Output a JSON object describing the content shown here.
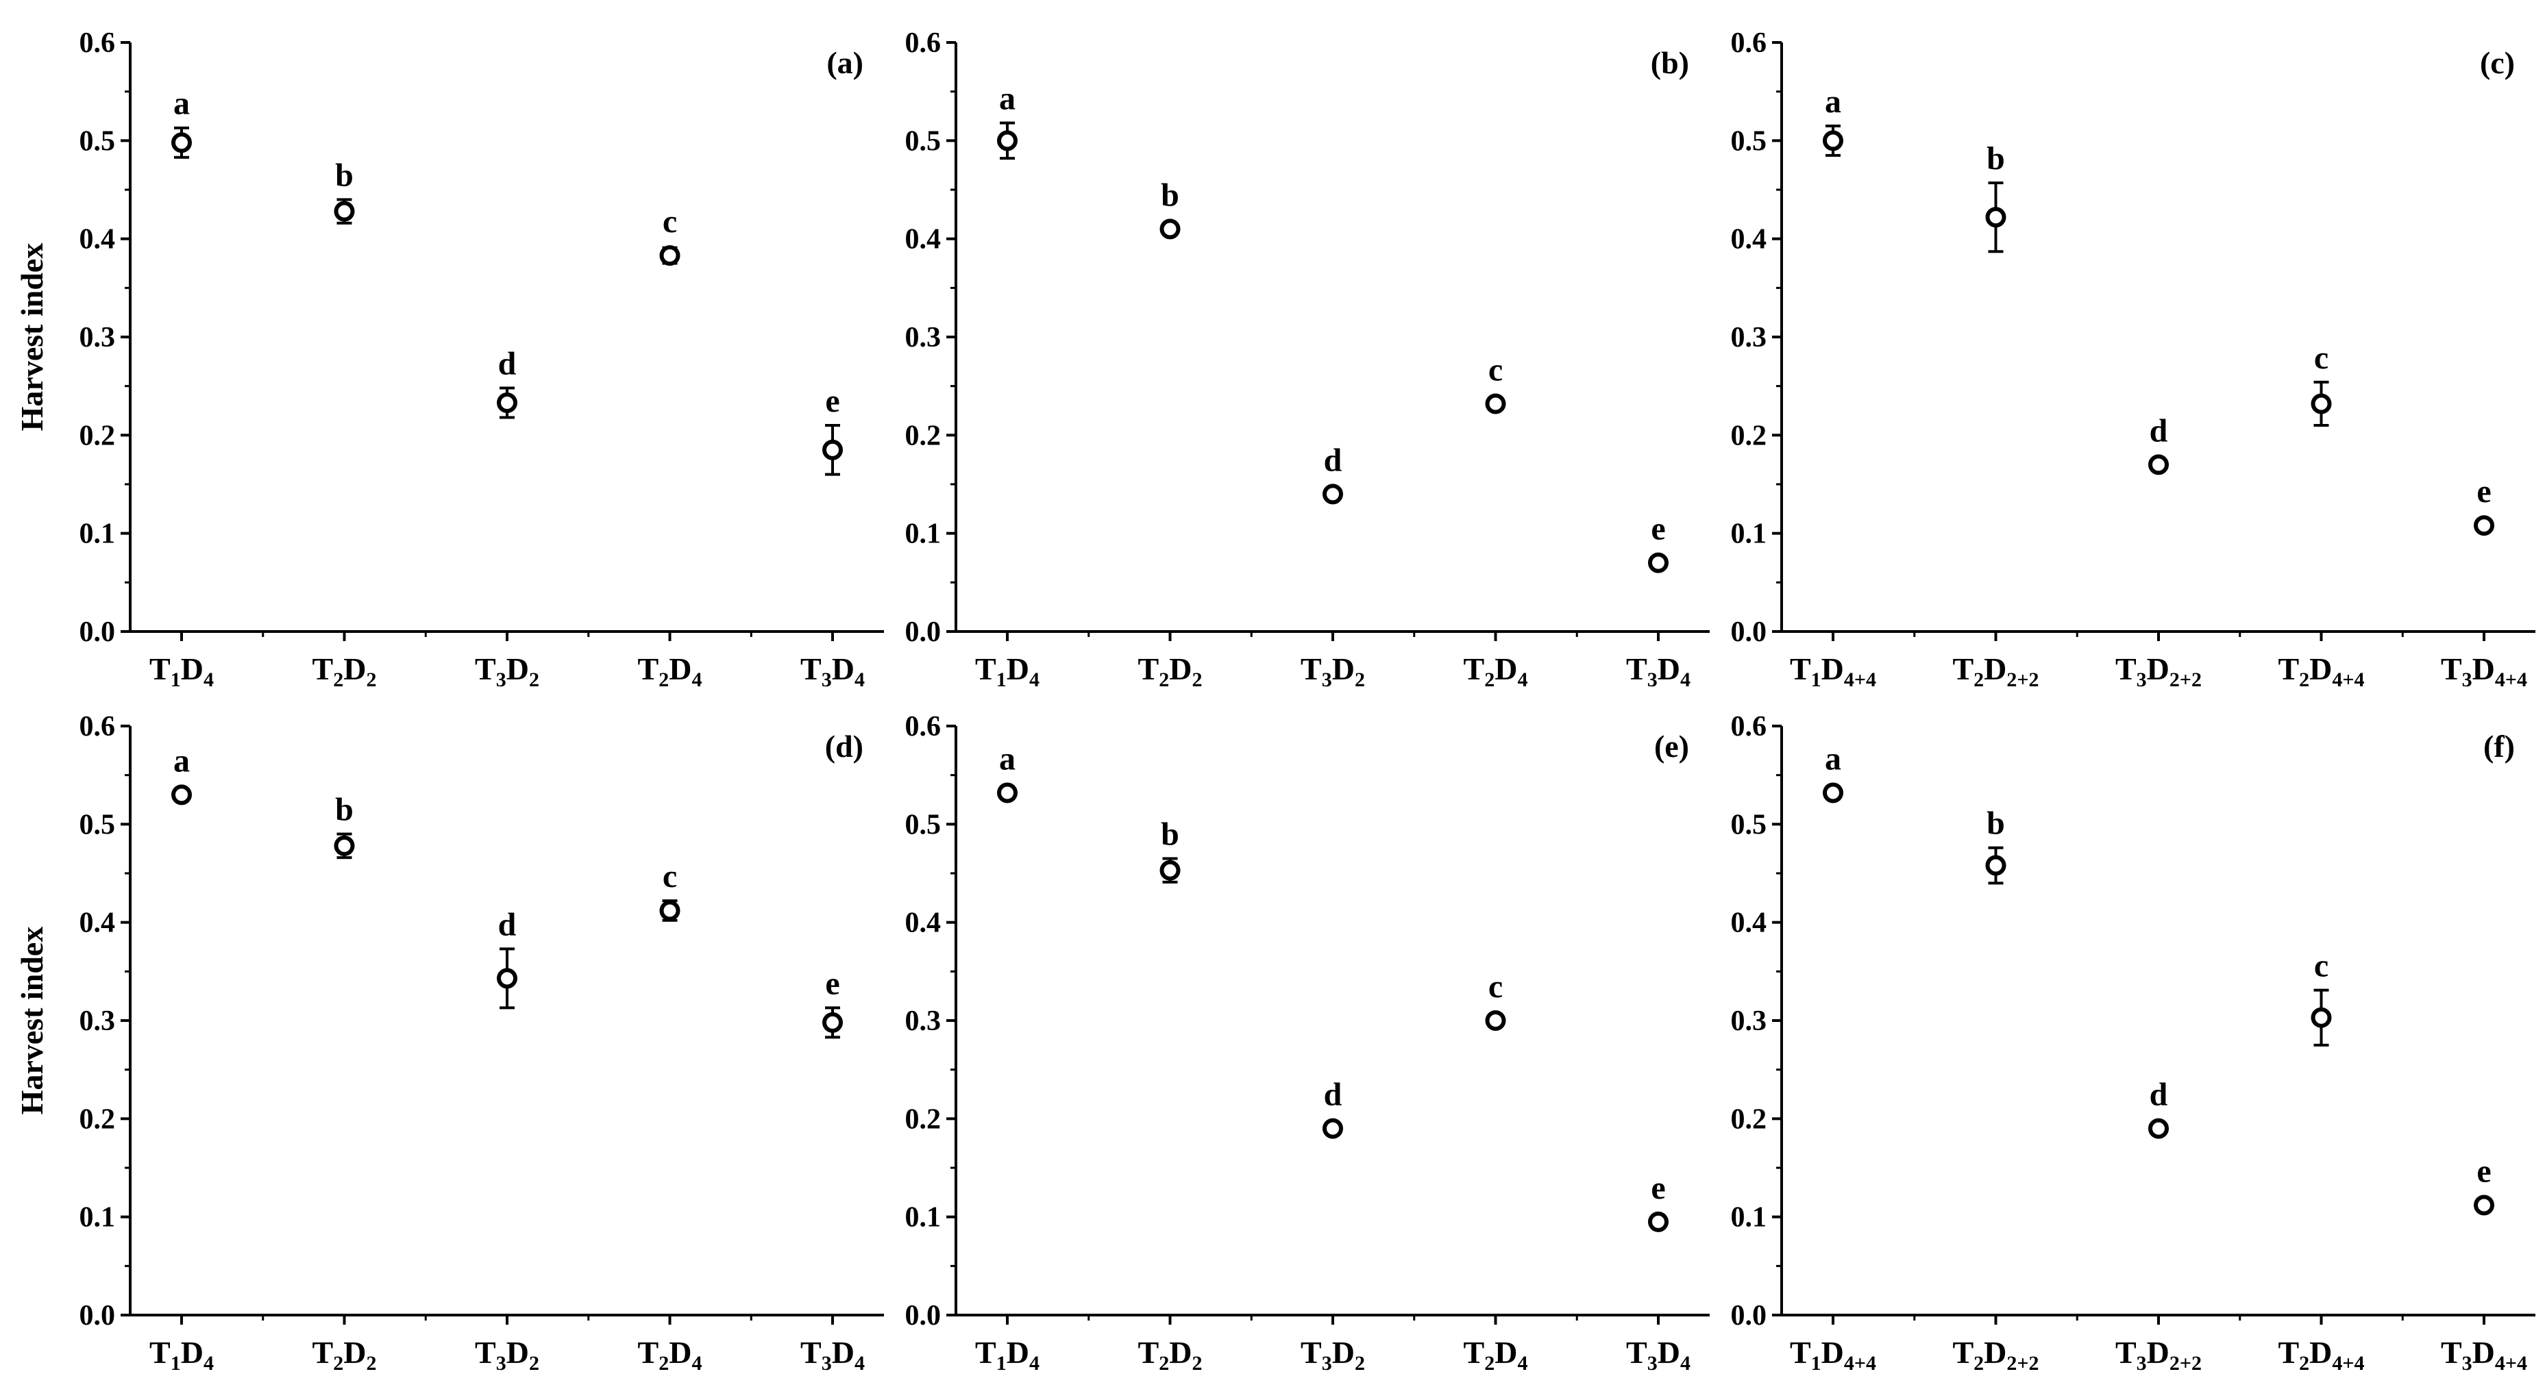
{
  "chart_data": [
    {
      "type": "scatter",
      "panel_label": "(a)",
      "ylabel": "Harvest index",
      "ylim": [
        0,
        0.6
      ],
      "yticks": [
        "0.0",
        "0.1",
        "0.2",
        "0.3",
        "0.4",
        "0.5",
        "0.6"
      ],
      "categories": [
        {
          "main": "T",
          "s1": "1",
          "mid": "D",
          "s2": "4"
        },
        {
          "main": "T",
          "s1": "2",
          "mid": "D",
          "s2": "2"
        },
        {
          "main": "T",
          "s1": "3",
          "mid": "D",
          "s2": "2"
        },
        {
          "main": "T",
          "s1": "2",
          "mid": "D",
          "s2": "4"
        },
        {
          "main": "T",
          "s1": "3",
          "mid": "D",
          "s2": "4"
        }
      ],
      "values": [
        0.498,
        0.428,
        0.233,
        0.383,
        0.185
      ],
      "errors": [
        0.015,
        0.012,
        0.015,
        0.008,
        0.025
      ],
      "letters": [
        "a",
        "b",
        "d",
        "c",
        "e"
      ]
    },
    {
      "type": "scatter",
      "panel_label": "(b)",
      "ylabel": "",
      "ylim": [
        0,
        0.6
      ],
      "yticks": [
        "0.0",
        "0.1",
        "0.2",
        "0.3",
        "0.4",
        "0.5",
        "0.6"
      ],
      "categories": [
        {
          "main": "T",
          "s1": "1",
          "mid": "D",
          "s2": "4"
        },
        {
          "main": "T",
          "s1": "2",
          "mid": "D",
          "s2": "2"
        },
        {
          "main": "T",
          "s1": "3",
          "mid": "D",
          "s2": "2"
        },
        {
          "main": "T",
          "s1": "2",
          "mid": "D",
          "s2": "4"
        },
        {
          "main": "T",
          "s1": "3",
          "mid": "D",
          "s2": "4"
        }
      ],
      "values": [
        0.5,
        0.41,
        0.14,
        0.232,
        0.07
      ],
      "errors": [
        0.018,
        0.005,
        0.005,
        0.005,
        0.005
      ],
      "letters": [
        "a",
        "b",
        "d",
        "c",
        "e"
      ]
    },
    {
      "type": "scatter",
      "panel_label": "(c)",
      "ylabel": "",
      "ylim": [
        0,
        0.6
      ],
      "yticks": [
        "0.0",
        "0.1",
        "0.2",
        "0.3",
        "0.4",
        "0.5",
        "0.6"
      ],
      "categories": [
        {
          "main": "T",
          "s1": "1",
          "mid": "D",
          "s2": "4+4"
        },
        {
          "main": "T",
          "s1": "2",
          "mid": "D",
          "s2": "2+2"
        },
        {
          "main": "T",
          "s1": "3",
          "mid": "D",
          "s2": "2+2"
        },
        {
          "main": "T",
          "s1": "2",
          "mid": "D",
          "s2": "4+4"
        },
        {
          "main": "T",
          "s1": "3",
          "mid": "D",
          "s2": "4+4"
        }
      ],
      "values": [
        0.5,
        0.422,
        0.17,
        0.232,
        0.108
      ],
      "errors": [
        0.015,
        0.035,
        0.005,
        0.022,
        0.005
      ],
      "letters": [
        "a",
        "b",
        "d",
        "c",
        "e"
      ]
    },
    {
      "type": "scatter",
      "panel_label": "(d)",
      "ylabel": "Harvest index",
      "ylim": [
        0,
        0.6
      ],
      "yticks": [
        "0.0",
        "0.1",
        "0.2",
        "0.3",
        "0.4",
        "0.5",
        "0.6"
      ],
      "categories": [
        {
          "main": "T",
          "s1": "1",
          "mid": "D",
          "s2": "4"
        },
        {
          "main": "T",
          "s1": "2",
          "mid": "D",
          "s2": "2"
        },
        {
          "main": "T",
          "s1": "3",
          "mid": "D",
          "s2": "2"
        },
        {
          "main": "T",
          "s1": "2",
          "mid": "D",
          "s2": "4"
        },
        {
          "main": "T",
          "s1": "3",
          "mid": "D",
          "s2": "4"
        }
      ],
      "values": [
        0.53,
        0.478,
        0.343,
        0.412,
        0.298
      ],
      "errors": [
        0.006,
        0.012,
        0.03,
        0.01,
        0.015
      ],
      "letters": [
        "a",
        "b",
        "d",
        "c",
        "e"
      ]
    },
    {
      "type": "scatter",
      "panel_label": "(e)",
      "ylabel": "",
      "ylim": [
        0,
        0.6
      ],
      "yticks": [
        "0.0",
        "0.1",
        "0.2",
        "0.3",
        "0.4",
        "0.5",
        "0.6"
      ],
      "categories": [
        {
          "main": "T",
          "s1": "1",
          "mid": "D",
          "s2": "4"
        },
        {
          "main": "T",
          "s1": "2",
          "mid": "D",
          "s2": "2"
        },
        {
          "main": "T",
          "s1": "3",
          "mid": "D",
          "s2": "2"
        },
        {
          "main": "T",
          "s1": "2",
          "mid": "D",
          "s2": "4"
        },
        {
          "main": "T",
          "s1": "3",
          "mid": "D",
          "s2": "4"
        }
      ],
      "values": [
        0.532,
        0.453,
        0.19,
        0.3,
        0.095
      ],
      "errors": [
        0.006,
        0.012,
        0.006,
        0.006,
        0.006
      ],
      "letters": [
        "a",
        "b",
        "d",
        "c",
        "e"
      ]
    },
    {
      "type": "scatter",
      "panel_label": "(f)",
      "ylabel": "",
      "ylim": [
        0,
        0.6
      ],
      "yticks": [
        "0.0",
        "0.1",
        "0.2",
        "0.3",
        "0.4",
        "0.5",
        "0.6"
      ],
      "categories": [
        {
          "main": "T",
          "s1": "1",
          "mid": "D",
          "s2": "4+4"
        },
        {
          "main": "T",
          "s1": "2",
          "mid": "D",
          "s2": "2+2"
        },
        {
          "main": "T",
          "s1": "3",
          "mid": "D",
          "s2": "2+2"
        },
        {
          "main": "T",
          "s1": "2",
          "mid": "D",
          "s2": "4+4"
        },
        {
          "main": "T",
          "s1": "3",
          "mid": "D",
          "s2": "4+4"
        }
      ],
      "values": [
        0.532,
        0.458,
        0.19,
        0.303,
        0.112
      ],
      "errors": [
        0.006,
        0.018,
        0.006,
        0.028,
        0.006
      ],
      "letters": [
        "a",
        "b",
        "d",
        "c",
        "e"
      ]
    }
  ]
}
